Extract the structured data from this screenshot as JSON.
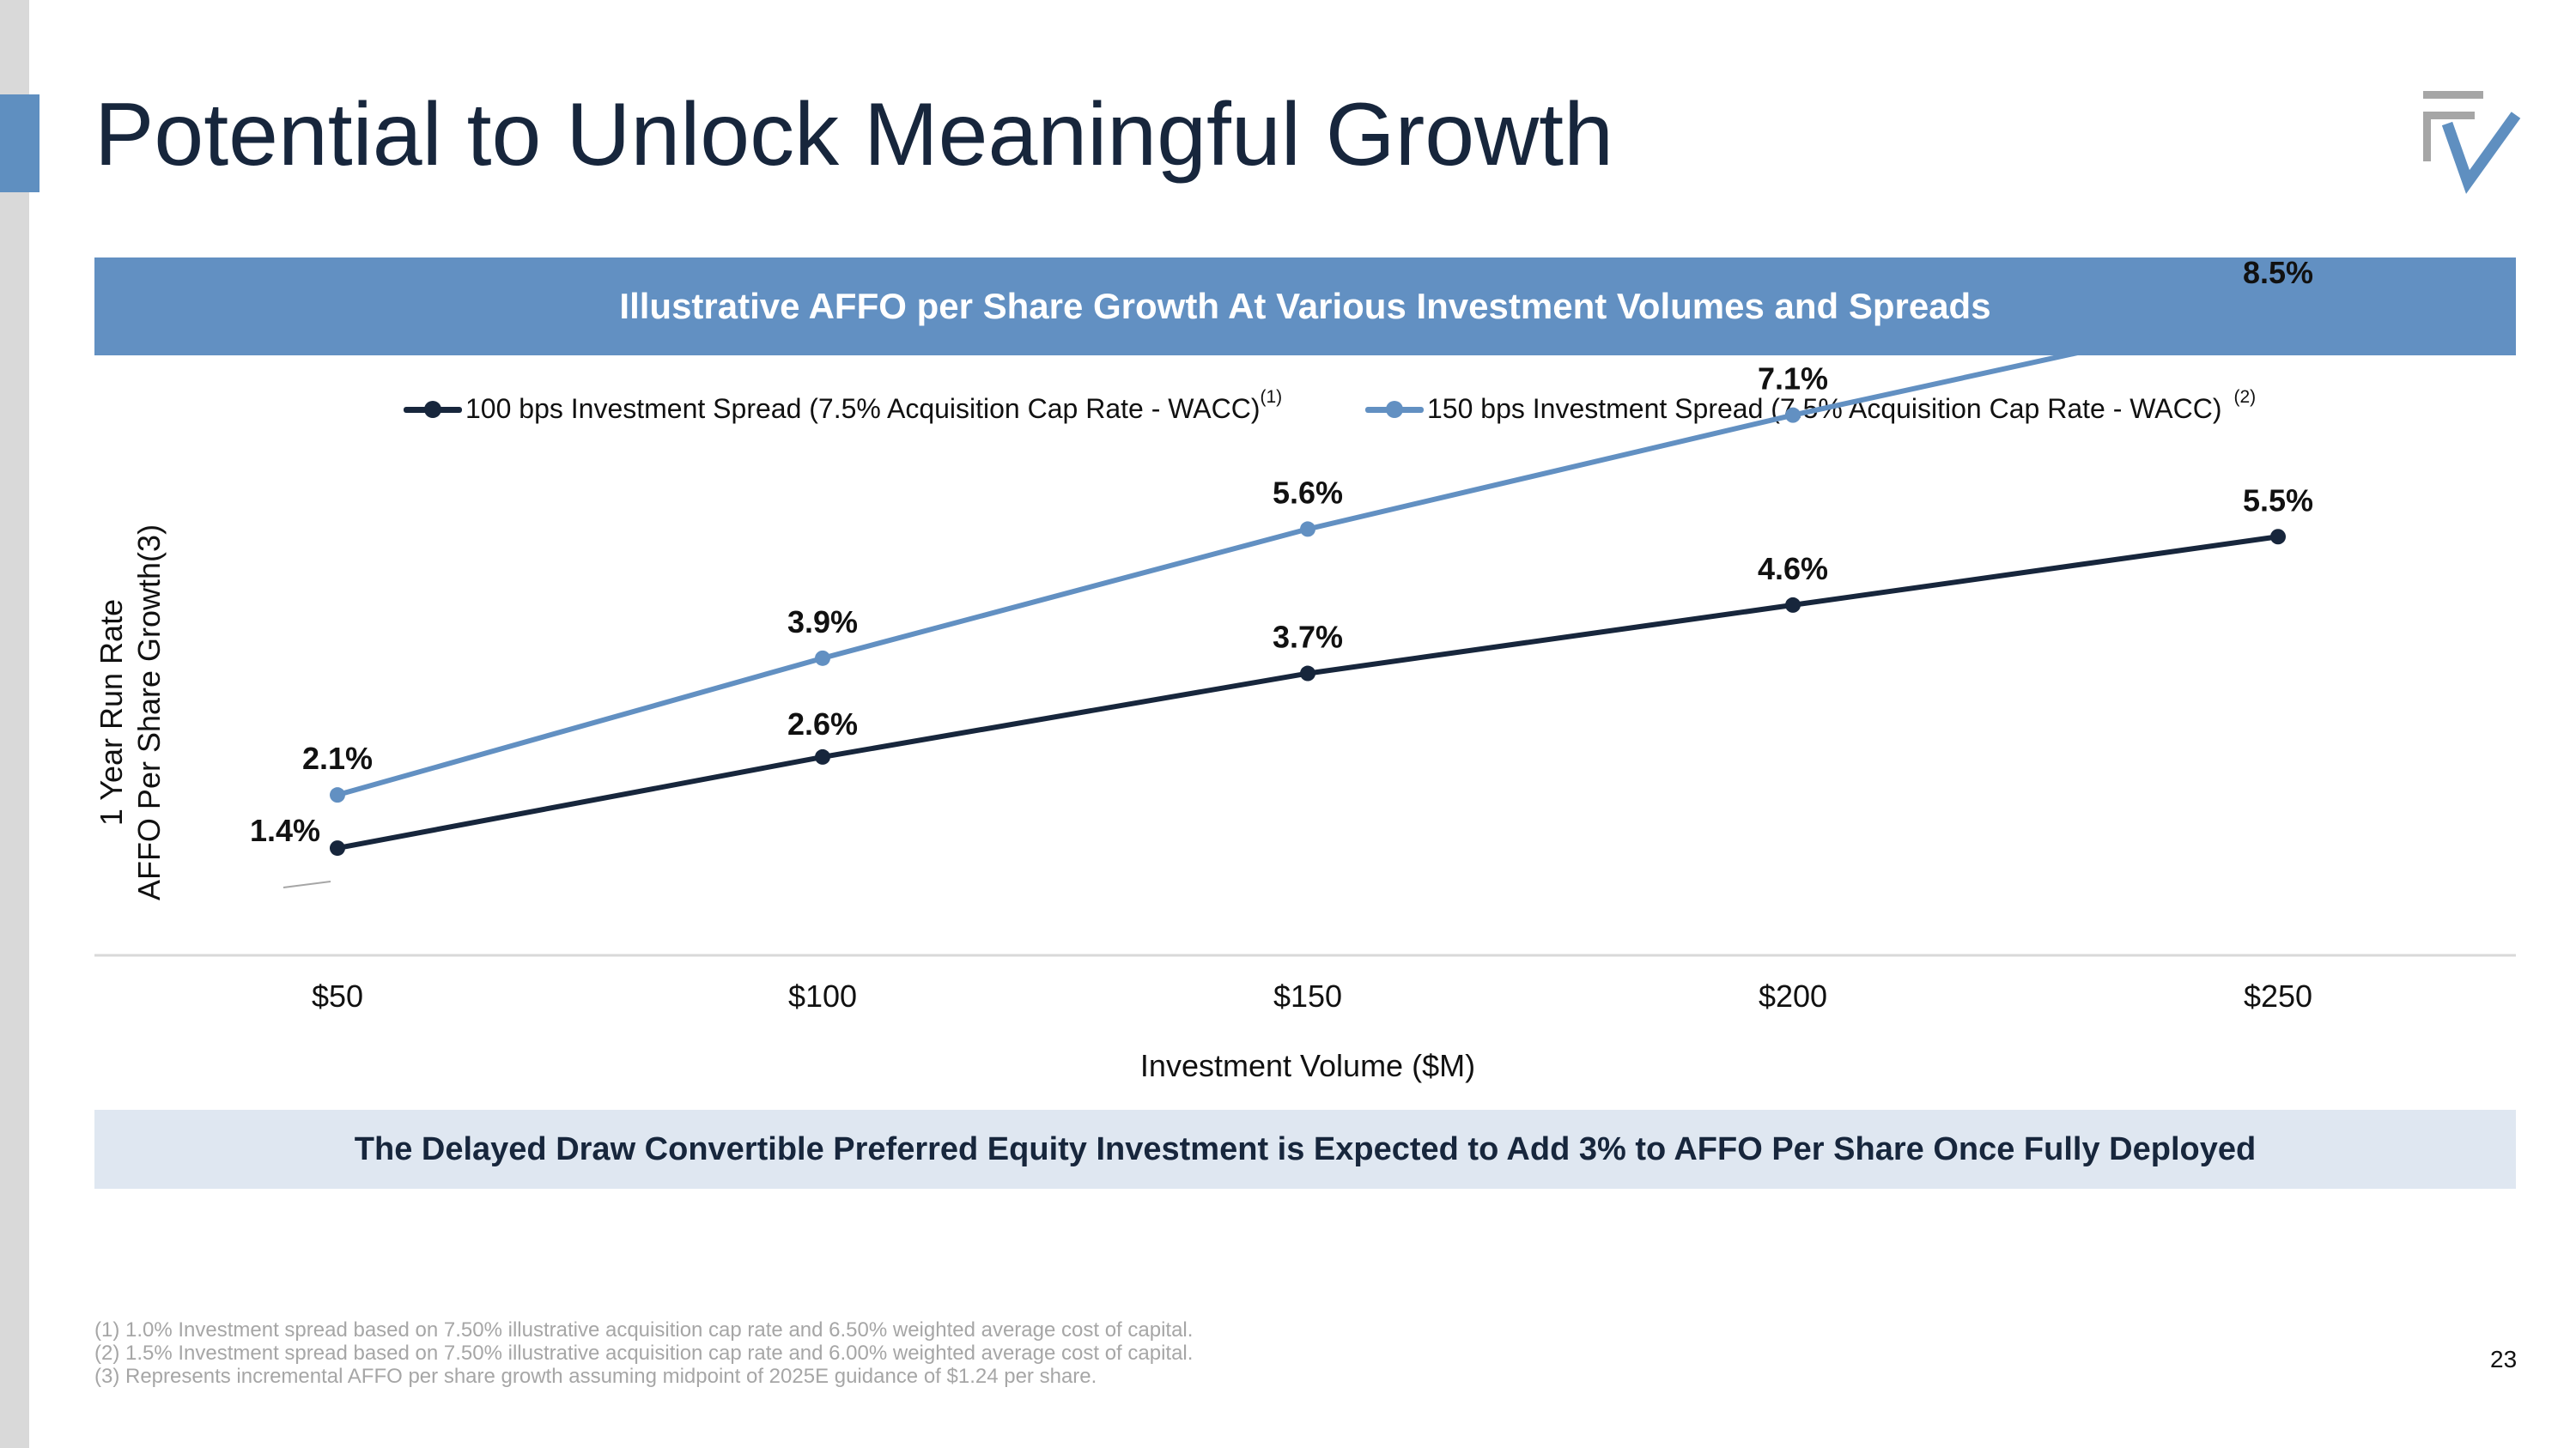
{
  "slide": {
    "title": "Potential to Unlock Meaningful Growth",
    "page_number": "23",
    "logo": "FVR logo",
    "colors": {
      "navy": "#17263c",
      "blue": "#6290c2",
      "light_blue": "#dfe7f1",
      "gray": "#a6a6a6"
    }
  },
  "chart_banner": "Illustrative AFFO per Share Growth At Various Investment Volumes and Spreads",
  "legend": {
    "series1_label": "100 bps Investment Spread (7.5% Acquisition Cap Rate - WACC)",
    "series1_note": "(1)",
    "series2_label": "150 bps Investment Spread (7.5% Acquisition  Cap Rate - WACC)",
    "series2_note": "(2)"
  },
  "chart_data": {
    "type": "line",
    "title": "Illustrative AFFO per Share Growth At Various Investment Volumes and Spreads",
    "xlabel": "Investment Volume ($M)",
    "ylabel_line1": "1 Year Run Rate",
    "ylabel_line2": "AFFO Per Share Growth(3)",
    "categories": [
      "$50",
      "$100",
      "$150",
      "$200",
      "$250"
    ],
    "ylim": [
      0,
      10
    ],
    "grid": false,
    "legend_position": "top",
    "series": [
      {
        "name": "100 bps Investment Spread (7.5% Acquisition Cap Rate - WACC)",
        "color": "#17263c",
        "values": [
          1.4,
          2.6,
          3.7,
          4.6,
          5.5
        ],
        "labels": [
          "1.4%",
          "2.6%",
          "3.7%",
          "4.6%",
          "5.5%"
        ]
      },
      {
        "name": "150 bps Investment Spread (7.5% Acquisition  Cap Rate - WACC)",
        "color": "#6290c2",
        "values": [
          2.1,
          3.9,
          5.6,
          7.1,
          8.5
        ],
        "labels": [
          "2.1%",
          "3.9%",
          "5.6%",
          "7.1%",
          "8.5%"
        ]
      }
    ]
  },
  "takeaway": "The Delayed Draw Convertible Preferred Equity Investment is Expected to Add 3% to AFFO Per Share Once Fully Deployed",
  "footnotes": [
    "(1) 1.0% Investment spread based on 7.50% illustrative acquisition cap rate and 6.50% weighted average cost of capital.",
    "(2) 1.5% Investment spread based on 7.50% illustrative acquisition cap rate and 6.00% weighted average cost of capital.",
    "(3) Represents incremental AFFO per share growth assuming midpoint of 2025E guidance of $1.24 per share."
  ]
}
